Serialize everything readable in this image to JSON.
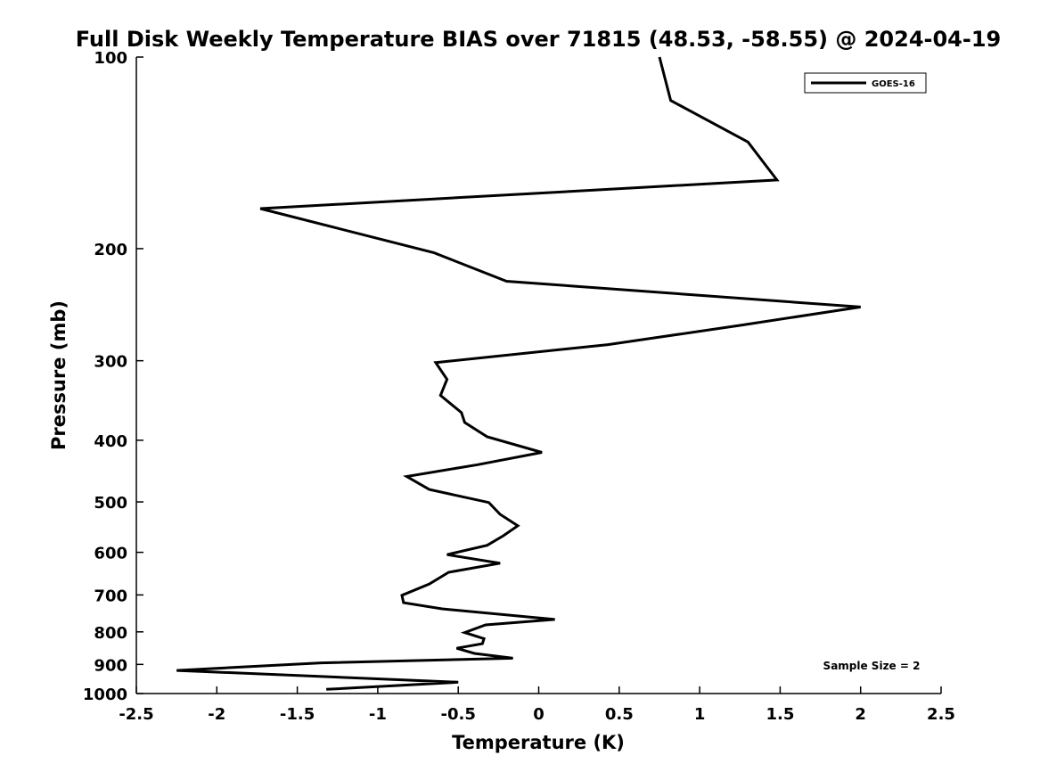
{
  "chart_data": {
    "type": "line",
    "title": "Full Disk Weekly Temperature BIAS over 71815 (48.53, -58.55) @ 2024-04-19",
    "xlabel": "Temperature (K)",
    "ylabel": "Pressure (mb)",
    "xlim": [
      -2.5,
      2.5
    ],
    "ylim": [
      1000,
      100
    ],
    "y_scale": "log",
    "y_inverted": true,
    "x_ticks": [
      "-2.5",
      "-2",
      "-1.5",
      "-1",
      "-0.5",
      "0",
      "0.5",
      "1",
      "1.5",
      "2",
      "2.5"
    ],
    "y_ticks": [
      "100",
      "200",
      "300",
      "400",
      "500",
      "600",
      "700",
      "800",
      "900",
      "1000"
    ],
    "grid": false,
    "legend": {
      "position": "top-right",
      "entries": [
        "GOES-16"
      ]
    },
    "annotation": "Sample Size = 2",
    "series": [
      {
        "name": "GOES-16",
        "color": "#000000",
        "x": [
          0.75,
          0.82,
          1.3,
          1.48,
          -1.73,
          -0.65,
          -0.2,
          2.0,
          1.25,
          0.43,
          -0.64,
          -0.57,
          -0.61,
          -0.48,
          -0.46,
          -0.32,
          0.02,
          -0.38,
          -0.82,
          -0.68,
          -0.31,
          -0.24,
          -0.13,
          -0.22,
          -0.32,
          -0.57,
          -0.24,
          -0.56,
          -0.68,
          -0.85,
          -0.84,
          -0.6,
          0.1,
          -0.33,
          -0.46,
          -0.34,
          -0.35,
          -0.51,
          -0.4,
          -0.16,
          -1.35,
          -2.25,
          -0.5,
          -1.32
        ],
        "y": [
          100,
          117,
          136,
          156,
          173,
          203,
          225,
          247,
          264,
          283,
          302,
          321,
          340,
          362,
          375,
          395,
          418,
          437,
          456,
          478,
          501,
          523,
          545,
          565,
          585,
          605,
          624,
          645,
          673,
          701,
          720,
          736,
          765,
          780,
          802,
          820,
          835,
          849,
          865,
          880,
          895,
          920,
          960,
          985
        ]
      }
    ]
  }
}
